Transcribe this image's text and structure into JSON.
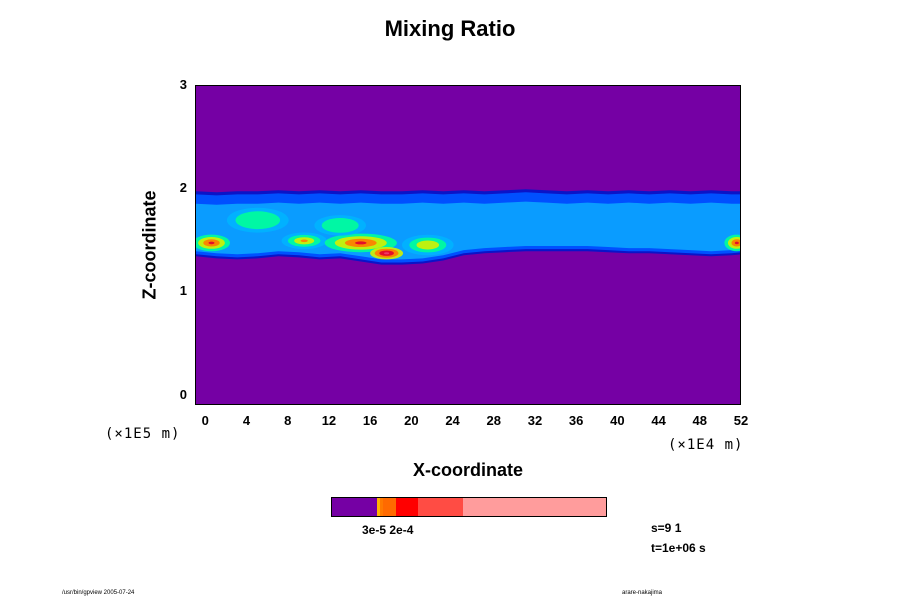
{
  "chart_data": {
    "type": "heatmap",
    "title": "Mixing Ratio",
    "xlabel": "X-coordinate",
    "ylabel": "Z-coordinate",
    "x_ticks": [
      "0",
      "4",
      "8",
      "12",
      "16",
      "20",
      "24",
      "28",
      "32",
      "36",
      "40",
      "44",
      "48",
      "52"
    ],
    "y_ticks": [
      "0",
      "1",
      "2",
      "3"
    ],
    "xlim": [
      -1,
      52
    ],
    "ylim": [
      -0.1,
      3.0
    ],
    "x_unit": "(×1E4 m)",
    "y_unit": "(×1E5 m)",
    "layer": {
      "x": [
        -1,
        1,
        3,
        5,
        7,
        9,
        11,
        13,
        15,
        17,
        19,
        21,
        23,
        25,
        27,
        29,
        31,
        33,
        35,
        37,
        39,
        41,
        43,
        45,
        47,
        49,
        51,
        52
      ],
      "z_top": [
        1.98,
        1.97,
        1.98,
        1.98,
        1.99,
        1.98,
        1.99,
        1.98,
        1.99,
        1.98,
        1.98,
        1.99,
        1.98,
        1.99,
        1.98,
        1.99,
        2.0,
        1.99,
        1.98,
        1.99,
        1.98,
        1.99,
        1.98,
        1.99,
        1.98,
        1.99,
        1.98,
        1.98
      ],
      "z_bottom": [
        1.35,
        1.33,
        1.32,
        1.33,
        1.35,
        1.34,
        1.32,
        1.33,
        1.3,
        1.27,
        1.27,
        1.28,
        1.31,
        1.36,
        1.38,
        1.39,
        1.4,
        1.4,
        1.4,
        1.4,
        1.39,
        1.38,
        1.38,
        1.37,
        1.36,
        1.35,
        1.36,
        1.37
      ]
    },
    "blobs": [
      {
        "x": 0.5,
        "z": 1.48,
        "rx": 1.8,
        "rz": 0.08,
        "level": 3
      },
      {
        "x": 9.5,
        "z": 1.5,
        "rx": 2.2,
        "rz": 0.08,
        "level": 2
      },
      {
        "x": 15,
        "z": 1.48,
        "rx": 3.5,
        "rz": 0.09,
        "level": 3
      },
      {
        "x": 17.5,
        "z": 1.38,
        "rx": 1.6,
        "rz": 0.06,
        "level": 4
      },
      {
        "x": 51.5,
        "z": 1.48,
        "rx": 1.2,
        "rz": 0.08,
        "level": 3
      },
      {
        "x": 21.5,
        "z": 1.46,
        "rx": 2.5,
        "rz": 0.1,
        "level": 1
      },
      {
        "x": 13,
        "z": 1.65,
        "rx": 2.5,
        "rz": 0.1,
        "level": 0
      },
      {
        "x": 5,
        "z": 1.7,
        "rx": 3,
        "rz": 0.12,
        "level": 0
      }
    ],
    "levels": [
      "#00b4ff",
      "#00ff9a",
      "#d4f000",
      "#ff7a00",
      "#e00030",
      "#f04070"
    ],
    "background_color": "#7500a4",
    "layer_colors": [
      "#0a14c8",
      "#0050ff",
      "#0a9cff"
    ],
    "colorbar": {
      "colors": [
        "#7500a4",
        "#ffb400",
        "#ff7a00",
        "#ff6a00",
        "#ff0000",
        "#ff4c44",
        "#ff9c9c"
      ],
      "fractions": [
        0.165,
        0.01,
        0.01,
        0.05,
        0.08,
        0.165,
        0.52
      ],
      "labels": "3e-5 2e-4"
    }
  },
  "info": {
    "s": "s=9 1",
    "t": "t=1e+06 s"
  },
  "footer": {
    "left": "/usr/bin/gpview 2005-07-24",
    "right": "arare-nakajima"
  }
}
